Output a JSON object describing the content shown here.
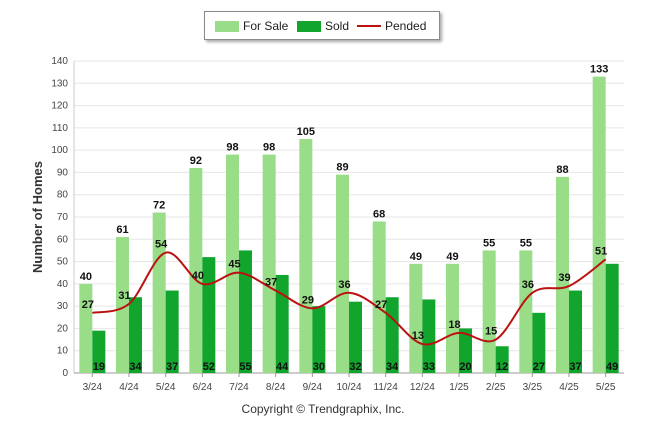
{
  "chart_data": {
    "type": "bar",
    "ylabel": "Number of Homes",
    "ylim": [
      0,
      140
    ],
    "yticks": [
      0,
      10,
      20,
      30,
      40,
      50,
      60,
      70,
      80,
      90,
      100,
      110,
      120,
      130,
      140
    ],
    "grid": true,
    "legend_position": "top-center",
    "categories": [
      "3/24",
      "4/24",
      "5/24",
      "6/24",
      "7/24",
      "8/24",
      "9/24",
      "10/24",
      "11/24",
      "12/24",
      "1/25",
      "2/25",
      "3/25",
      "4/25",
      "5/25"
    ],
    "series": [
      {
        "name": "For Sale",
        "type": "bar",
        "color": "#99dd88",
        "values": [
          40,
          61,
          72,
          92,
          98,
          98,
          105,
          89,
          68,
          49,
          49,
          55,
          55,
          88,
          133
        ]
      },
      {
        "name": "Sold",
        "type": "bar",
        "color": "#11a52d",
        "values": [
          19,
          34,
          37,
          52,
          55,
          44,
          30,
          32,
          34,
          33,
          20,
          12,
          27,
          37,
          49
        ]
      },
      {
        "name": "Pended",
        "type": "line",
        "color": "#bb1111",
        "values": [
          27,
          31,
          54,
          40,
          45,
          37,
          29,
          36,
          27,
          13,
          18,
          15,
          36,
          39,
          51
        ]
      }
    ]
  },
  "footer": "Copyright © Trendgraphix, Inc."
}
